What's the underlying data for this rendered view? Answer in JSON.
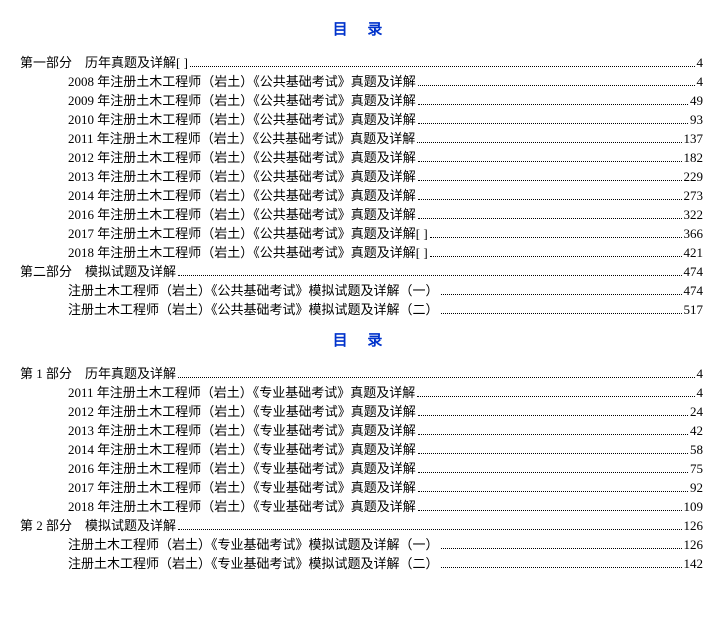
{
  "colors": {
    "title_color": "#0033cc",
    "text_color": "#000000",
    "background": "#ffffff"
  },
  "typography": {
    "body_font": "SimSun",
    "body_size_pt": 10,
    "title_size_pt": 11,
    "title_weight": "bold"
  },
  "toc1": {
    "title": "目 录",
    "sections": [
      {
        "label": "第一部分　历年真题及详解[            ]",
        "page": "4",
        "children": [
          {
            "label": "2008 年注册土木工程师（岩土）《公共基础考试》真题及详解",
            "page": "4"
          },
          {
            "label": "2009 年注册土木工程师（岩土）《公共基础考试》真题及详解",
            "page": "49"
          },
          {
            "label": "2010 年注册土木工程师（岩土）《公共基础考试》真题及详解",
            "page": "93"
          },
          {
            "label": "2011 年注册土木工程师（岩土）《公共基础考试》真题及详解",
            "page": "137"
          },
          {
            "label": "2012 年注册土木工程师（岩土）《公共基础考试》真题及详解",
            "page": "182"
          },
          {
            "label": "2013 年注册土木工程师（岩土）《公共基础考试》真题及详解",
            "page": "229"
          },
          {
            "label": "2014 年注册土木工程师（岩土）《公共基础考试》真题及详解",
            "page": "273"
          },
          {
            "label": "2016 年注册土木工程师（岩土）《公共基础考试》真题及详解",
            "page": "322"
          },
          {
            "label": "2017 年注册土木工程师（岩土）《公共基础考试》真题及详解[          ]",
            "page": "366"
          },
          {
            "label": "2018 年注册土木工程师（岩土）《公共基础考试》真题及详解[          ]",
            "page": "421"
          }
        ]
      },
      {
        "label": "第二部分　模拟试题及详解",
        "page": "474",
        "children": [
          {
            "label": "注册土木工程师（岩土）《公共基础考试》模拟试题及详解（一）",
            "page": "474"
          },
          {
            "label": "注册土木工程师（岩土）《公共基础考试》模拟试题及详解（二）",
            "page": "517"
          }
        ]
      }
    ]
  },
  "toc2": {
    "title": "目 录",
    "sections": [
      {
        "label": "第 1 部分　历年真题及详解",
        "page": "4",
        "children": [
          {
            "label": "2011 年注册土木工程师（岩土）《专业基础考试》真题及详解",
            "page": "4"
          },
          {
            "label": "2012 年注册土木工程师（岩土）《专业基础考试》真题及详解",
            "page": "24"
          },
          {
            "label": "2013 年注册土木工程师（岩土）《专业基础考试》真题及详解",
            "page": "42"
          },
          {
            "label": "2014 年注册土木工程师（岩土）《专业基础考试》真题及详解",
            "page": "58"
          },
          {
            "label": "2016 年注册土木工程师（岩土）《专业基础考试》真题及详解",
            "page": "75"
          },
          {
            "label": "2017 年注册土木工程师（岩土）《专业基础考试》真题及详解",
            "page": "92"
          },
          {
            "label": "2018 年注册土木工程师（岩土）《专业基础考试》真题及详解",
            "page": "109"
          }
        ]
      },
      {
        "label": "第 2 部分　模拟试题及详解",
        "page": "126",
        "children": [
          {
            "label": "注册土木工程师（岩土）《专业基础考试》模拟试题及详解（一）",
            "page": "126"
          },
          {
            "label": "注册土木工程师（岩土）《专业基础考试》模拟试题及详解（二）",
            "page": "142"
          }
        ]
      }
    ]
  }
}
